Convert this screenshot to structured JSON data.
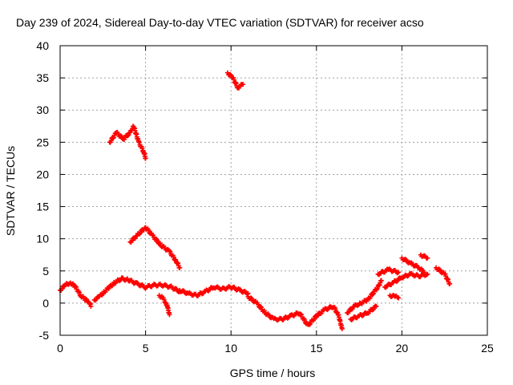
{
  "chart_data": {
    "type": "scatter",
    "title": "Day 239 of 2024, Sidereal Day-to-day VTEC variation (SDTVAR) for receiver acso",
    "xlabel": "GPS time / hours",
    "ylabel": "SDTVAR / TECUs",
    "xlim": [
      0,
      25
    ],
    "ylim": [
      -5,
      40
    ],
    "xticks": [
      0,
      5,
      10,
      15,
      20,
      25
    ],
    "yticks": [
      -5,
      0,
      5,
      10,
      15,
      20,
      25,
      30,
      35,
      40
    ],
    "grid": true,
    "marker": "+",
    "series": [
      {
        "name": "SDTVAR",
        "color": "#ff0000",
        "tracks": [
          [
            [
              0.0,
              2.0
            ],
            [
              0.3,
              2.8
            ],
            [
              0.6,
              3.2
            ],
            [
              0.9,
              2.5
            ],
            [
              1.2,
              1.2
            ],
            [
              1.5,
              0.5
            ],
            [
              1.7,
              0.2
            ],
            [
              1.8,
              -0.5
            ]
          ],
          [
            [
              2.0,
              0.5
            ],
            [
              2.3,
              1.0
            ],
            [
              2.6,
              1.8
            ],
            [
              2.9,
              2.5
            ],
            [
              3.2,
              3.2
            ],
            [
              3.6,
              3.8
            ],
            [
              4.0,
              3.6
            ],
            [
              4.5,
              3.0
            ],
            [
              5.0,
              2.5
            ],
            [
              5.5,
              2.8
            ],
            [
              6.0,
              2.8
            ],
            [
              6.5,
              2.5
            ],
            [
              7.0,
              1.8
            ]
          ],
          [
            [
              5.8,
              1.2
            ],
            [
              6.0,
              0.8
            ],
            [
              6.2,
              0.0
            ],
            [
              6.3,
              -0.8
            ],
            [
              6.4,
              -1.8
            ]
          ],
          [
            [
              7.0,
              2.0
            ],
            [
              7.5,
              1.5
            ],
            [
              8.0,
              1.2
            ],
            [
              8.5,
              1.8
            ],
            [
              9.0,
              2.5
            ],
            [
              9.5,
              2.2
            ],
            [
              10.0,
              2.5
            ],
            [
              10.5,
              2.0
            ],
            [
              11.0,
              1.5
            ]
          ],
          [
            [
              11.0,
              1.0
            ],
            [
              11.5,
              0.0
            ],
            [
              12.0,
              -1.5
            ],
            [
              12.5,
              -2.5
            ],
            [
              13.0,
              -2.5
            ],
            [
              13.5,
              -2.0
            ],
            [
              14.0,
              -1.5
            ],
            [
              14.5,
              -3.5
            ],
            [
              15.0,
              -2.0
            ],
            [
              15.5,
              -1.0
            ],
            [
              16.0,
              -0.5
            ],
            [
              16.3,
              -2.0
            ],
            [
              16.5,
              -4.0
            ]
          ],
          [
            [
              16.8,
              -1.5
            ],
            [
              17.2,
              -0.5
            ],
            [
              17.6,
              0.0
            ],
            [
              18.0,
              0.5
            ],
            [
              18.3,
              1.5
            ],
            [
              18.6,
              2.5
            ],
            [
              18.8,
              3.5
            ]
          ],
          [
            [
              17.0,
              -2.5
            ],
            [
              17.5,
              -2.0
            ],
            [
              18.0,
              -1.5
            ],
            [
              18.5,
              -0.5
            ]
          ],
          [
            [
              18.6,
              4.5
            ],
            [
              19.2,
              5.2
            ],
            [
              19.8,
              4.8
            ]
          ],
          [
            [
              19.0,
              2.5
            ],
            [
              19.5,
              3.2
            ],
            [
              20.0,
              4.0
            ],
            [
              20.5,
              4.5
            ],
            [
              21.0,
              4.2
            ],
            [
              21.5,
              4.5
            ]
          ],
          [
            [
              19.3,
              1.2
            ],
            [
              19.6,
              1.0
            ],
            [
              19.8,
              0.8
            ]
          ],
          [
            [
              20.0,
              7.0
            ],
            [
              20.5,
              6.2
            ],
            [
              21.0,
              5.5
            ],
            [
              21.3,
              4.8
            ]
          ],
          [
            [
              21.1,
              7.5
            ],
            [
              21.5,
              7.0
            ]
          ],
          [
            [
              22.0,
              5.5
            ],
            [
              22.5,
              4.5
            ],
            [
              22.8,
              3.0
            ]
          ],
          [
            [
              2.9,
              25.0
            ],
            [
              3.3,
              26.5
            ],
            [
              3.7,
              25.5
            ],
            [
              4.1,
              26.5
            ],
            [
              4.3,
              27.5
            ],
            [
              4.6,
              25.0
            ],
            [
              4.9,
              23.5
            ],
            [
              5.0,
              22.5
            ]
          ],
          [
            [
              4.1,
              9.5
            ],
            [
              4.5,
              10.5
            ],
            [
              5.0,
              11.8
            ],
            [
              5.4,
              10.5
            ],
            [
              5.9,
              9.0
            ],
            [
              6.4,
              8.0
            ],
            [
              6.8,
              6.5
            ],
            [
              7.0,
              5.5
            ]
          ],
          [
            [
              9.8,
              35.8
            ],
            [
              10.1,
              35.0
            ],
            [
              10.4,
              33.5
            ],
            [
              10.7,
              34.0
            ]
          ]
        ]
      }
    ]
  }
}
